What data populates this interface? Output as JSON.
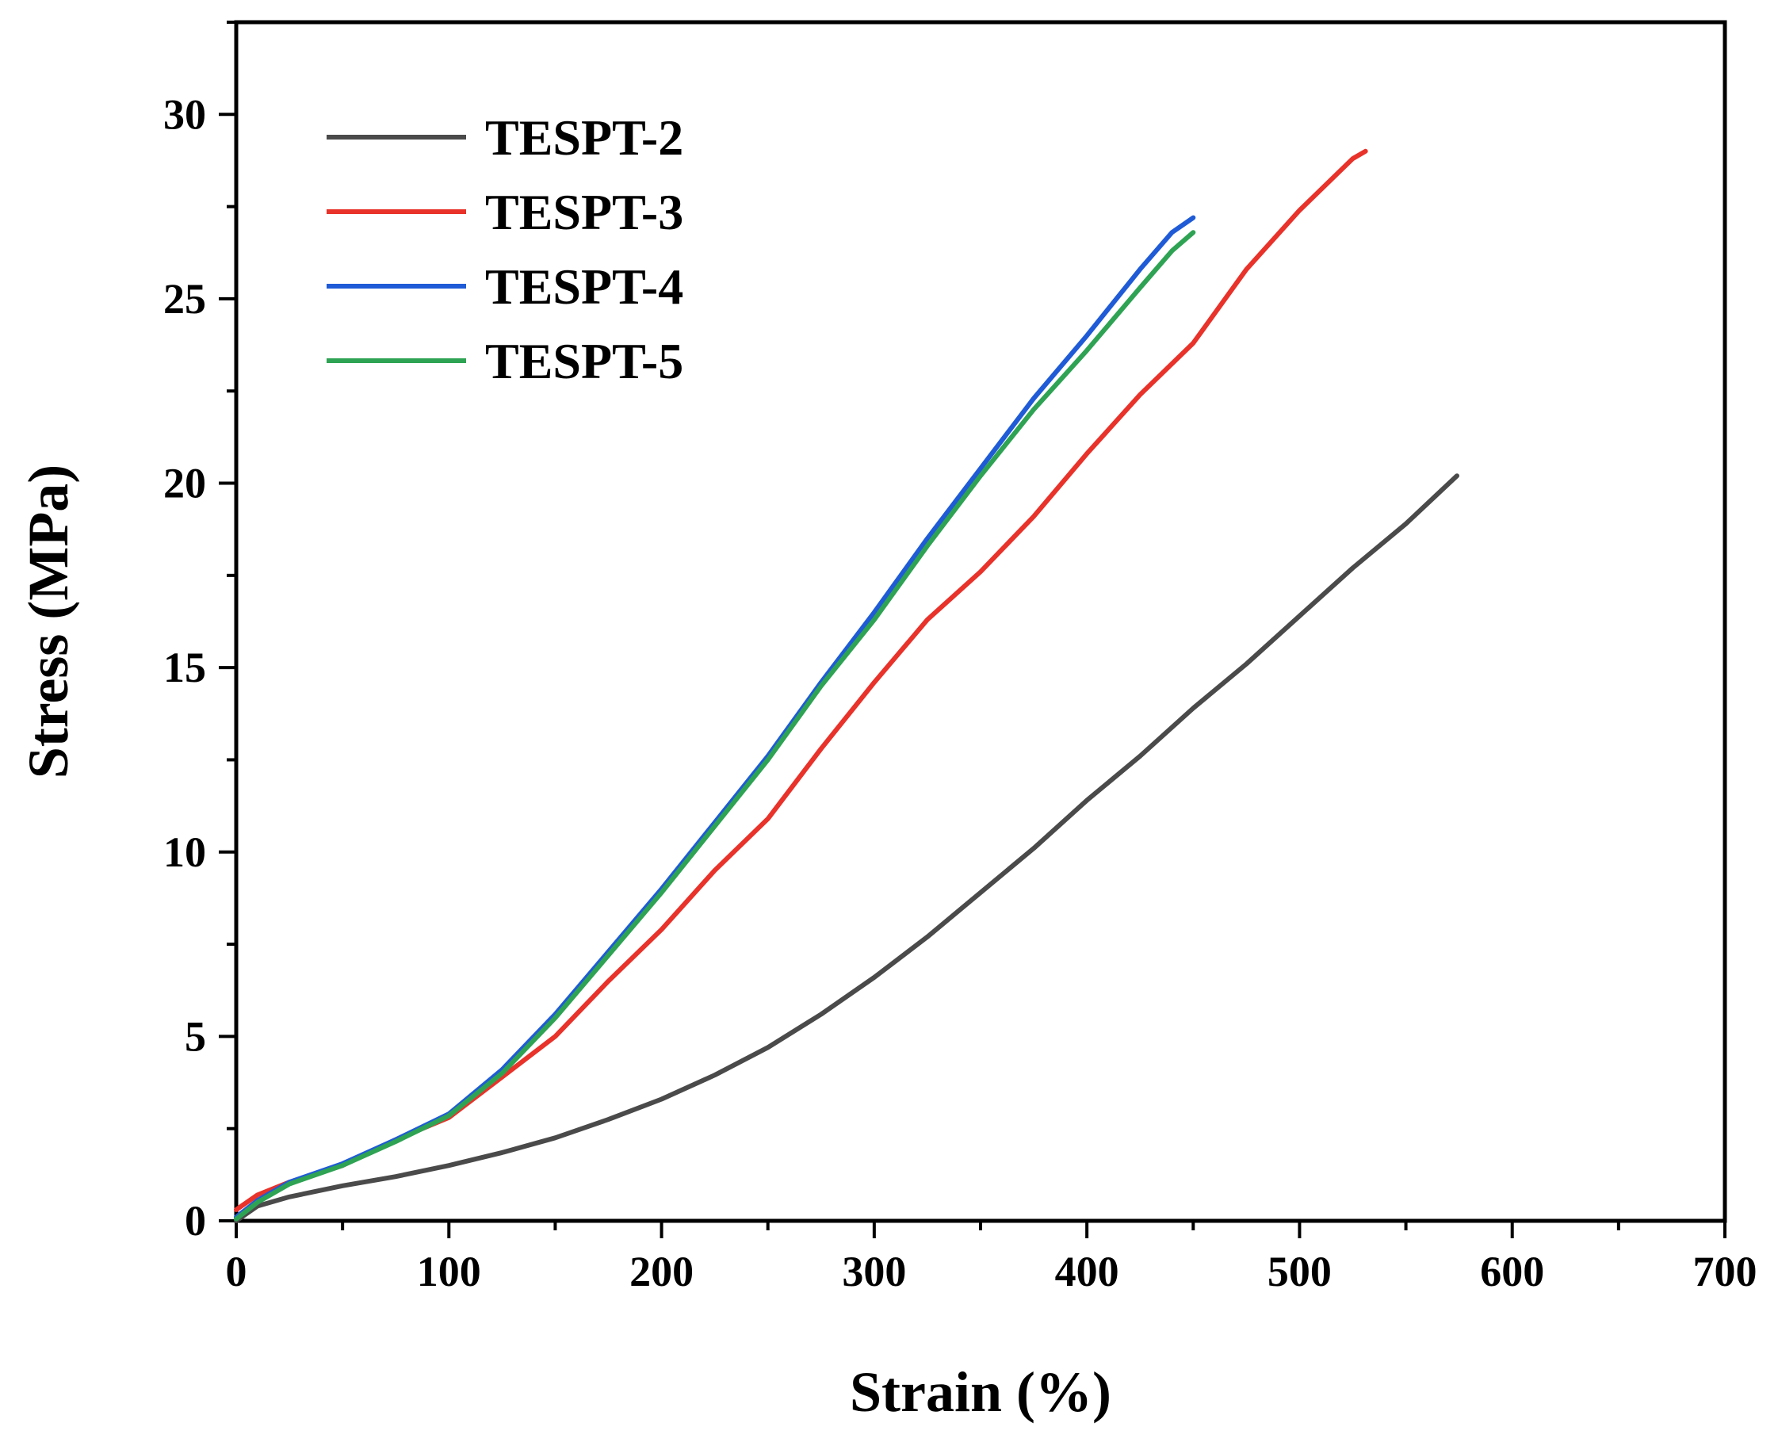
{
  "chart_data": {
    "type": "line",
    "title": "",
    "xlabel": "Strain (%)",
    "ylabel": "Stress (MPa)",
    "xlim": [
      0,
      700
    ],
    "ylim": [
      0,
      32.5
    ],
    "xticks": [
      0,
      100,
      200,
      300,
      400,
      500,
      600,
      700
    ],
    "yticks": [
      0,
      5,
      10,
      15,
      20,
      25,
      30
    ],
    "xtick_labels": [
      "0",
      "100",
      "200",
      "300",
      "400",
      "500",
      "600",
      "700"
    ],
    "ytick_labels": [
      "0",
      "5",
      "10",
      "15",
      "20",
      "25",
      "30"
    ],
    "grid": false,
    "legend_position": "top-left",
    "series": [
      {
        "name": "TESPT-2",
        "color": "#4a4a4a",
        "x": [
          0,
          10,
          25,
          50,
          75,
          100,
          125,
          150,
          175,
          200,
          225,
          250,
          275,
          300,
          325,
          350,
          375,
          400,
          425,
          450,
          475,
          500,
          525,
          550,
          574
        ],
        "y": [
          0,
          0.4,
          0.65,
          0.95,
          1.2,
          1.5,
          1.85,
          2.25,
          2.75,
          3.3,
          3.95,
          4.7,
          5.6,
          6.6,
          7.7,
          8.9,
          10.1,
          11.4,
          12.6,
          13.9,
          15.1,
          16.4,
          17.7,
          18.9,
          20.2
        ]
      },
      {
        "name": "TESPT-3",
        "color": "#e8322a",
        "x": [
          0,
          10,
          25,
          50,
          75,
          100,
          125,
          150,
          175,
          200,
          225,
          250,
          275,
          300,
          325,
          350,
          375,
          400,
          425,
          450,
          475,
          500,
          525,
          531
        ],
        "y": [
          0.3,
          0.7,
          1.05,
          1.5,
          2.2,
          2.8,
          3.9,
          5.0,
          6.5,
          7.9,
          9.5,
          10.9,
          12.8,
          14.6,
          16.3,
          17.6,
          19.1,
          20.8,
          22.4,
          23.8,
          25.8,
          27.4,
          28.8,
          29.0
        ]
      },
      {
        "name": "TESPT-4",
        "color": "#1f5bd6",
        "x": [
          0,
          10,
          25,
          50,
          75,
          100,
          125,
          150,
          175,
          200,
          225,
          250,
          275,
          300,
          325,
          350,
          375,
          400,
          425,
          440,
          450
        ],
        "y": [
          0.1,
          0.55,
          1.05,
          1.55,
          2.2,
          2.9,
          4.1,
          5.6,
          7.3,
          9.0,
          10.8,
          12.6,
          14.6,
          16.5,
          18.5,
          20.4,
          22.3,
          24.0,
          25.8,
          26.8,
          27.2
        ]
      },
      {
        "name": "TESPT-5",
        "color": "#2ea353",
        "x": [
          0,
          10,
          25,
          50,
          75,
          100,
          125,
          150,
          175,
          200,
          225,
          250,
          275,
          300,
          325,
          350,
          375,
          400,
          425,
          440,
          450
        ],
        "y": [
          0.05,
          0.5,
          1.0,
          1.5,
          2.15,
          2.85,
          4.0,
          5.5,
          7.2,
          8.9,
          10.7,
          12.5,
          14.5,
          16.3,
          18.3,
          20.2,
          22.0,
          23.6,
          25.3,
          26.3,
          26.8
        ]
      }
    ]
  }
}
